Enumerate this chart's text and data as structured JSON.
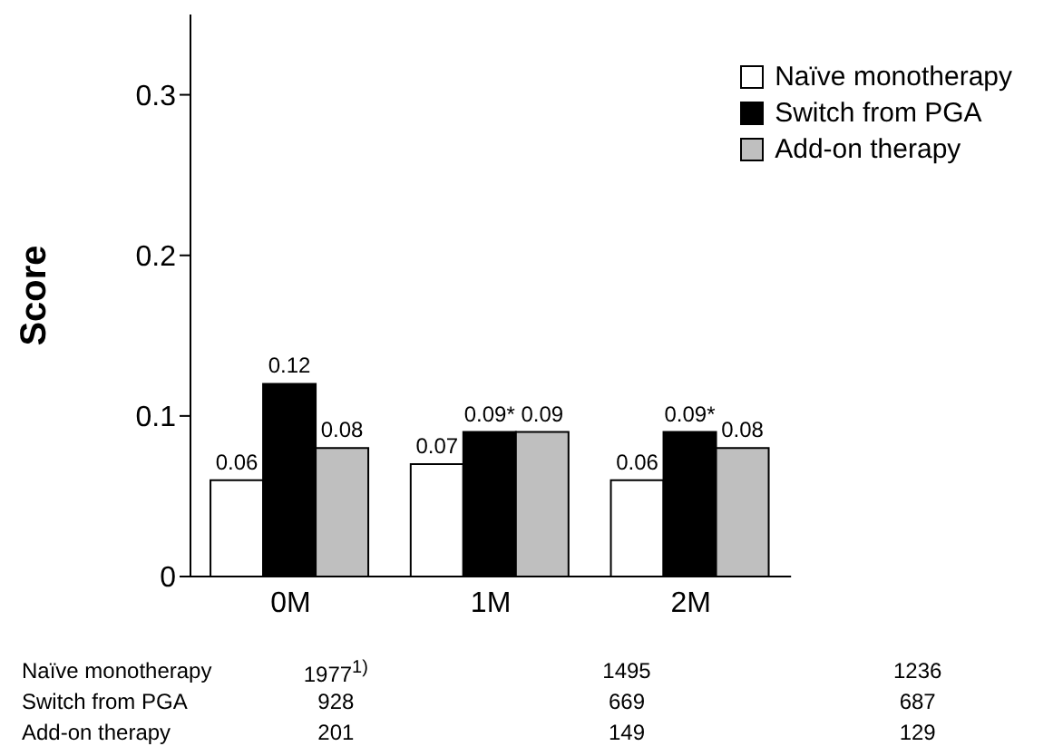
{
  "chart_data": {
    "type": "bar",
    "ylabel": "Score",
    "categories": [
      "0M",
      "1M",
      "2M"
    ],
    "series": [
      {
        "name": "Naïve monotherapy",
        "color": "#ffffff",
        "values": [
          0.06,
          0.07,
          0.06
        ],
        "value_labels": [
          "0.06",
          "0.07",
          "0.06"
        ]
      },
      {
        "name": "Switch from PGA",
        "color": "#000000",
        "values": [
          0.12,
          0.09,
          0.09
        ],
        "value_labels": [
          "0.12",
          "0.09*",
          "0.09*"
        ]
      },
      {
        "name": "Add-on therapy",
        "color": "#bfbfbf",
        "values": [
          0.08,
          0.09,
          0.08
        ],
        "value_labels": [
          "0.08",
          "0.09",
          "0.08"
        ]
      }
    ],
    "ylim": [
      0,
      0.35
    ],
    "yticks": [
      0,
      0.1,
      0.2,
      0.3
    ],
    "grid": false,
    "legend": "top right",
    "annotations": [
      "Naïve monotherapy",
      "1977$^{1)}$",
      "1495",
      "1236",
      "Switch from PGA",
      "928",
      "669",
      "687",
      "Add-on therapy",
      "201",
      "149",
      "129"
    ]
  }
}
